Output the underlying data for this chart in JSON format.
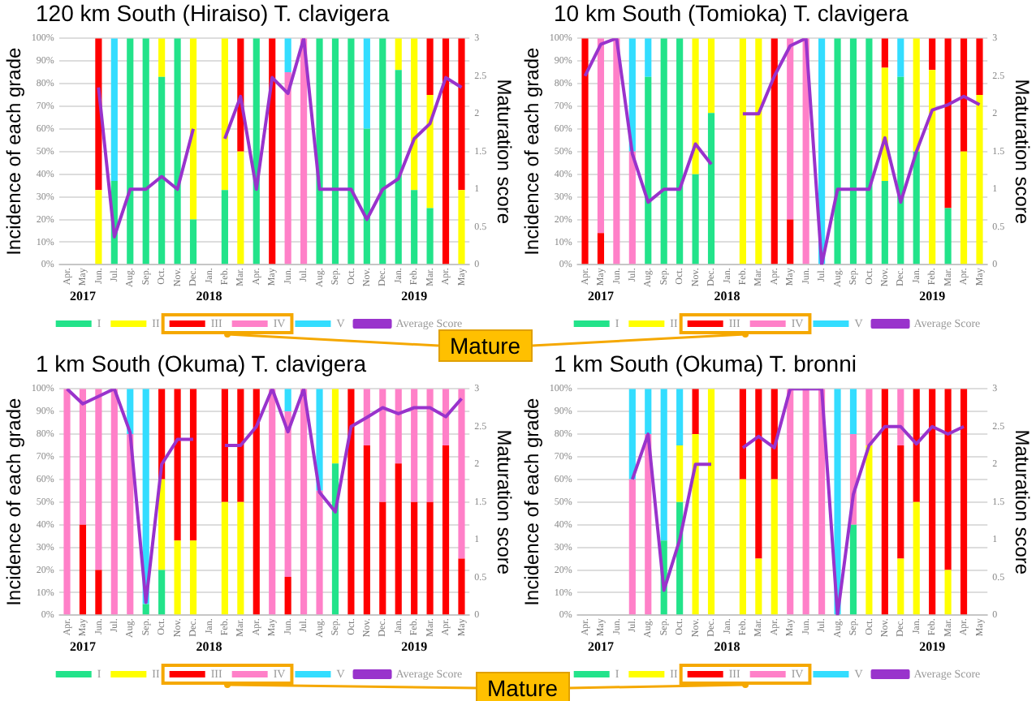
{
  "chart_data": [
    {
      "type": "bar",
      "title": "120 km South (Hiraiso) T. clavigera",
      "ylabel": "Incidence of each grade",
      "y2label": "Maturation score",
      "stacked": true,
      "grid": "y",
      "legend": "bottom",
      "marker": "none",
      "categories": [
        "Apr.",
        "May",
        "Jun.",
        "Jul.",
        "Aug.",
        "Sep.",
        "Oct.",
        "Nov.",
        "Dec.",
        "Jan.",
        "Feb.",
        "Mar.",
        "Apr.",
        "May",
        "Jun.",
        "Jul.",
        "Aug.",
        "Sep.",
        "Oct.",
        "Nov.",
        "Dec.",
        "Jan.",
        "Feb.",
        "Mar.",
        "Apr.",
        "May"
      ],
      "ylim": [
        0,
        100
      ],
      "yticks": [
        {
          "value": 0,
          "label": "0%"
        },
        {
          "value": 10,
          "label": "10%"
        },
        {
          "value": 20,
          "label": "20%"
        },
        {
          "value": 30,
          "label": "30%"
        },
        {
          "value": 40,
          "label": "40%"
        },
        {
          "value": 50,
          "label": "50%"
        },
        {
          "value": 60,
          "label": "60%"
        },
        {
          "value": 70,
          "label": "70%"
        },
        {
          "value": 80,
          "label": "80%"
        },
        {
          "value": 90,
          "label": "90%"
        },
        {
          "value": 100,
          "label": "100%"
        }
      ],
      "y2lim": [
        0,
        3
      ],
      "y2ticks": [
        0,
        0.5,
        1,
        1.5,
        2,
        2.5,
        3
      ],
      "annotations": [
        "2017",
        "2018",
        "2019",
        "Mature"
      ],
      "series": [
        {
          "name": "I",
          "color": "#22e38a",
          "values": [
            null,
            null,
            0,
            37,
            100,
            100,
            83,
            100,
            20,
            null,
            33,
            0,
            100,
            0,
            0,
            0,
            100,
            100,
            100,
            60,
            100,
            86,
            33,
            25,
            0,
            0
          ]
        },
        {
          "name": "II",
          "color": "#ffff00",
          "values": [
            null,
            null,
            33,
            0,
            0,
            0,
            17,
            0,
            80,
            null,
            67,
            50,
            0,
            0,
            0,
            0,
            0,
            0,
            0,
            0,
            0,
            14,
            67,
            50,
            0,
            33
          ]
        },
        {
          "name": "III",
          "color": "#ff0000",
          "values": [
            null,
            null,
            67,
            0,
            0,
            0,
            0,
            0,
            0,
            null,
            0,
            50,
            0,
            100,
            0,
            0,
            0,
            0,
            0,
            0,
            0,
            0,
            0,
            25,
            100,
            67
          ]
        },
        {
          "name": "IV",
          "color": "#ff80c8",
          "values": [
            null,
            null,
            0,
            0,
            0,
            0,
            0,
            0,
            0,
            null,
            0,
            0,
            0,
            0,
            85,
            100,
            0,
            0,
            0,
            0,
            0,
            0,
            0,
            0,
            0,
            0
          ]
        },
        {
          "name": "V",
          "color": "#33ddff",
          "values": [
            null,
            null,
            0,
            63,
            0,
            0,
            0,
            0,
            0,
            null,
            0,
            0,
            0,
            0,
            15,
            0,
            0,
            0,
            0,
            40,
            0,
            0,
            0,
            0,
            0,
            0
          ]
        },
        {
          "name": "Average Score",
          "type": "line",
          "axis": "y2",
          "color": "#9933cc",
          "values": [
            null,
            null,
            2.35,
            0.37,
            1,
            1,
            1.17,
            1,
            1.8,
            null,
            1.67,
            2.23,
            1,
            2.48,
            2.27,
            3,
            1,
            1,
            1,
            0.6,
            1,
            1.14,
            1.67,
            1.87,
            2.48,
            2.35
          ]
        }
      ]
    },
    {
      "type": "bar",
      "title": "10 km South (Tomioka) T. clavigera",
      "ylabel": "Incidence of each grade",
      "y2label": "Maturation score",
      "stacked": true,
      "grid": "y",
      "legend": "bottom",
      "marker": "none",
      "categories": [
        "Apr.",
        "May",
        "Jun.",
        "Jul.",
        "Aug.",
        "Sep.",
        "Oct.",
        "Nov.",
        "Dec.",
        "Jan.",
        "Feb.",
        "Mar.",
        "Apr.",
        "May",
        "Jun.",
        "Jul.",
        "Aug.",
        "Sep.",
        "Oct.",
        "Nov.",
        "Dec.",
        "Jan.",
        "Feb.",
        "Mar.",
        "Apr.",
        "May"
      ],
      "ylim": [
        0,
        100
      ],
      "yticks": [
        {
          "value": 0,
          "label": "0%"
        },
        {
          "value": 10,
          "label": "10%"
        },
        {
          "value": 20,
          "label": "20%"
        },
        {
          "value": 30,
          "label": "30%"
        },
        {
          "value": 40,
          "label": "40%"
        },
        {
          "value": 50,
          "label": "50%"
        },
        {
          "value": 60,
          "label": "60%"
        },
        {
          "value": 70,
          "label": "70%"
        },
        {
          "value": 80,
          "label": "80%"
        },
        {
          "value": 90,
          "label": "90%"
        },
        {
          "value": 100,
          "label": "100%"
        }
      ],
      "y2lim": [
        0,
        3
      ],
      "y2ticks": [
        0,
        0.5,
        1,
        1.5,
        2,
        2.5,
        3
      ],
      "annotations": [
        "2017",
        "2018",
        "2019"
      ],
      "series": [
        {
          "name": "I",
          "color": "#22e38a",
          "values": [
            0,
            0,
            0,
            0,
            83,
            100,
            100,
            40,
            67,
            null,
            0,
            0,
            0,
            0,
            0,
            0,
            100,
            100,
            100,
            37,
            83,
            50,
            0,
            25,
            0,
            0
          ]
        },
        {
          "name": "II",
          "color": "#ffff00",
          "values": [
            0,
            0,
            0,
            0,
            0,
            0,
            0,
            60,
            33,
            null,
            100,
            100,
            0,
            0,
            0,
            0,
            0,
            0,
            0,
            50,
            0,
            50,
            86,
            0,
            50,
            75
          ]
        },
        {
          "name": "III",
          "color": "#ff0000",
          "values": [
            100,
            14,
            0,
            0,
            0,
            0,
            0,
            0,
            0,
            null,
            0,
            0,
            100,
            20,
            0,
            0,
            0,
            0,
            0,
            13,
            0,
            0,
            14,
            75,
            50,
            25
          ]
        },
        {
          "name": "IV",
          "color": "#ff80c8",
          "values": [
            0,
            86,
            100,
            50,
            0,
            0,
            0,
            0,
            0,
            null,
            0,
            0,
            0,
            80,
            100,
            0,
            0,
            0,
            0,
            0,
            0,
            0,
            0,
            0,
            0,
            0
          ]
        },
        {
          "name": "V",
          "color": "#33ddff",
          "values": [
            0,
            0,
            0,
            50,
            17,
            0,
            0,
            0,
            0,
            null,
            0,
            0,
            0,
            0,
            0,
            100,
            0,
            0,
            0,
            0,
            17,
            0,
            0,
            0,
            0,
            0
          ]
        },
        {
          "name": "Average Score",
          "type": "line",
          "axis": "y2",
          "color": "#9933cc",
          "values": [
            2.5,
            2.92,
            3,
            1.47,
            0.83,
            1,
            1,
            1.6,
            1.33,
            null,
            2,
            2,
            2.5,
            2.9,
            3,
            0,
            1,
            1,
            1,
            1.68,
            0.83,
            1.5,
            2.05,
            2.12,
            2.23,
            2.12
          ]
        }
      ]
    },
    {
      "type": "bar",
      "title": "1 km South (Okuma) T. clavigera",
      "ylabel": "Incidence of each grade",
      "y2label": "Maturation score",
      "stacked": true,
      "grid": "y",
      "legend": "bottom",
      "marker": "none",
      "categories": [
        "Apr.",
        "May",
        "Jun.",
        "Jul.",
        "Aug.",
        "Sep.",
        "Oct.",
        "Nov.",
        "Dec.",
        "Jan.",
        "Feb.",
        "Mar.",
        "Apr.",
        "May",
        "Jun.",
        "Jul.",
        "Aug.",
        "Sep.",
        "Oct.",
        "Nov.",
        "Dec.",
        "Jan.",
        "Feb.",
        "Mar.",
        "Apr.",
        "May"
      ],
      "ylim": [
        0,
        100
      ],
      "yticks": [
        {
          "value": 0,
          "label": "0%"
        },
        {
          "value": 10,
          "label": "10%"
        },
        {
          "value": 20,
          "label": "20%"
        },
        {
          "value": 30,
          "label": "30%"
        },
        {
          "value": 40,
          "label": "40%"
        },
        {
          "value": 50,
          "label": "50%"
        },
        {
          "value": 60,
          "label": "60%"
        },
        {
          "value": 70,
          "label": "70%"
        },
        {
          "value": 80,
          "label": "80%"
        },
        {
          "value": 90,
          "label": "90%"
        },
        {
          "value": 100,
          "label": "100%"
        }
      ],
      "y2lim": [
        0,
        3
      ],
      "y2ticks": [
        0,
        0.5,
        1,
        1.5,
        2,
        2.5,
        3
      ],
      "annotations": [
        "2017",
        "2018",
        "2019",
        "Mature"
      ],
      "series": [
        {
          "name": "I",
          "color": "#22e38a",
          "values": [
            0,
            0,
            0,
            0,
            0,
            5,
            20,
            0,
            0,
            null,
            0,
            0,
            0,
            0,
            0,
            0,
            0,
            67,
            0,
            0,
            0,
            0,
            0,
            0,
            0,
            0
          ]
        },
        {
          "name": "II",
          "color": "#ffff00",
          "values": [
            0,
            0,
            0,
            0,
            0,
            0,
            40,
            33,
            33,
            null,
            50,
            50,
            0,
            0,
            0,
            0,
            0,
            33,
            0,
            0,
            0,
            0,
            0,
            0,
            0,
            0
          ]
        },
        {
          "name": "III",
          "color": "#ff0000",
          "values": [
            0,
            40,
            20,
            0,
            0,
            0,
            40,
            67,
            67,
            null,
            50,
            50,
            100,
            0,
            17,
            0,
            0,
            0,
            100,
            75,
            50,
            67,
            50,
            50,
            75,
            25
          ]
        },
        {
          "name": "IV",
          "color": "#ff80c8",
          "values": [
            100,
            60,
            80,
            100,
            80,
            0,
            0,
            0,
            0,
            null,
            0,
            0,
            0,
            100,
            73,
            100,
            55,
            0,
            0,
            25,
            50,
            33,
            50,
            50,
            25,
            75
          ]
        },
        {
          "name": "V",
          "color": "#33ddff",
          "values": [
            0,
            0,
            0,
            0,
            20,
            95,
            0,
            0,
            0,
            null,
            0,
            0,
            0,
            0,
            10,
            0,
            45,
            0,
            0,
            0,
            0,
            0,
            0,
            0,
            0,
            0
          ]
        },
        {
          "name": "Average Score",
          "type": "line",
          "axis": "y2",
          "color": "#9933cc",
          "values": [
            3,
            2.8,
            2.9,
            3,
            2.42,
            0.17,
            2,
            2.33,
            2.33,
            null,
            2.25,
            2.25,
            2.5,
            3,
            2.43,
            3,
            1.63,
            1.37,
            2.5,
            2.62,
            2.75,
            2.67,
            2.75,
            2.75,
            2.63,
            2.87
          ]
        }
      ]
    },
    {
      "type": "bar",
      "title": "1 km South (Okuma) T. bronni",
      "ylabel": "Incidence of each grade",
      "y2label": "Maturation score",
      "stacked": true,
      "grid": "y",
      "legend": "bottom",
      "marker": "none",
      "categories": [
        "Apr.",
        "May",
        "Jun.",
        "Jul.",
        "Aug.",
        "Sep.",
        "Oct.",
        "Nov.",
        "Dec.",
        "Jan.",
        "Feb.",
        "Mar.",
        "Apr.",
        "May",
        "Jun.",
        "Jul.",
        "Aug.",
        "Sep.",
        "Oct.",
        "Nov.",
        "Dec.",
        "Jan.",
        "Feb.",
        "Mar.",
        "Apr.",
        "May"
      ],
      "ylim": [
        0,
        100
      ],
      "yticks": [
        {
          "value": 0,
          "label": "0%"
        },
        {
          "value": 10,
          "label": "10%"
        },
        {
          "value": 20,
          "label": "20%"
        },
        {
          "value": 30,
          "label": "30%"
        },
        {
          "value": 40,
          "label": "40%"
        },
        {
          "value": 50,
          "label": "50%"
        },
        {
          "value": 60,
          "label": "60%"
        },
        {
          "value": 70,
          "label": "70%"
        },
        {
          "value": 80,
          "label": "80%"
        },
        {
          "value": 90,
          "label": "90%"
        },
        {
          "value": 100,
          "label": "100%"
        }
      ],
      "y2lim": [
        0,
        3
      ],
      "y2ticks": [
        0,
        0.5,
        1,
        1.5,
        2,
        2.5,
        3
      ],
      "annotations": [
        "2017",
        "2018",
        "2019"
      ],
      "series": [
        {
          "name": "I",
          "color": "#22e38a",
          "values": [
            null,
            null,
            null,
            0,
            0,
            33,
            50,
            0,
            0,
            null,
            0,
            0,
            0,
            0,
            0,
            0,
            0,
            40,
            0,
            0,
            0,
            0,
            0,
            0,
            0,
            null
          ]
        },
        {
          "name": "II",
          "color": "#ffff00",
          "values": [
            null,
            null,
            null,
            0,
            0,
            0,
            25,
            80,
            100,
            null,
            60,
            25,
            60,
            0,
            0,
            0,
            0,
            0,
            75,
            0,
            25,
            50,
            0,
            20,
            0,
            null
          ]
        },
        {
          "name": "III",
          "color": "#ff0000",
          "values": [
            null,
            null,
            null,
            0,
            0,
            0,
            0,
            20,
            0,
            null,
            40,
            75,
            40,
            0,
            0,
            0,
            0,
            0,
            0,
            100,
            50,
            50,
            100,
            80,
            100,
            null
          ]
        },
        {
          "name": "IV",
          "color": "#ff80c8",
          "values": [
            null,
            null,
            null,
            60,
            80,
            0,
            0,
            0,
            0,
            null,
            0,
            0,
            0,
            100,
            100,
            100,
            0,
            40,
            25,
            0,
            25,
            0,
            0,
            0,
            0,
            null
          ]
        },
        {
          "name": "V",
          "color": "#33ddff",
          "values": [
            null,
            null,
            null,
            40,
            20,
            67,
            25,
            0,
            0,
            null,
            0,
            0,
            0,
            0,
            0,
            0,
            100,
            20,
            0,
            0,
            0,
            0,
            0,
            0,
            0,
            null
          ]
        },
        {
          "name": "Average Score",
          "type": "line",
          "axis": "y2",
          "color": "#9933cc",
          "values": [
            null,
            null,
            null,
            1.8,
            2.4,
            0.33,
            1,
            2,
            2,
            null,
            2.22,
            2.37,
            2.22,
            3,
            3,
            3,
            0,
            1.6,
            2.25,
            2.5,
            2.5,
            2.27,
            2.5,
            2.4,
            2.5,
            null
          ]
        }
      ]
    }
  ]
}
